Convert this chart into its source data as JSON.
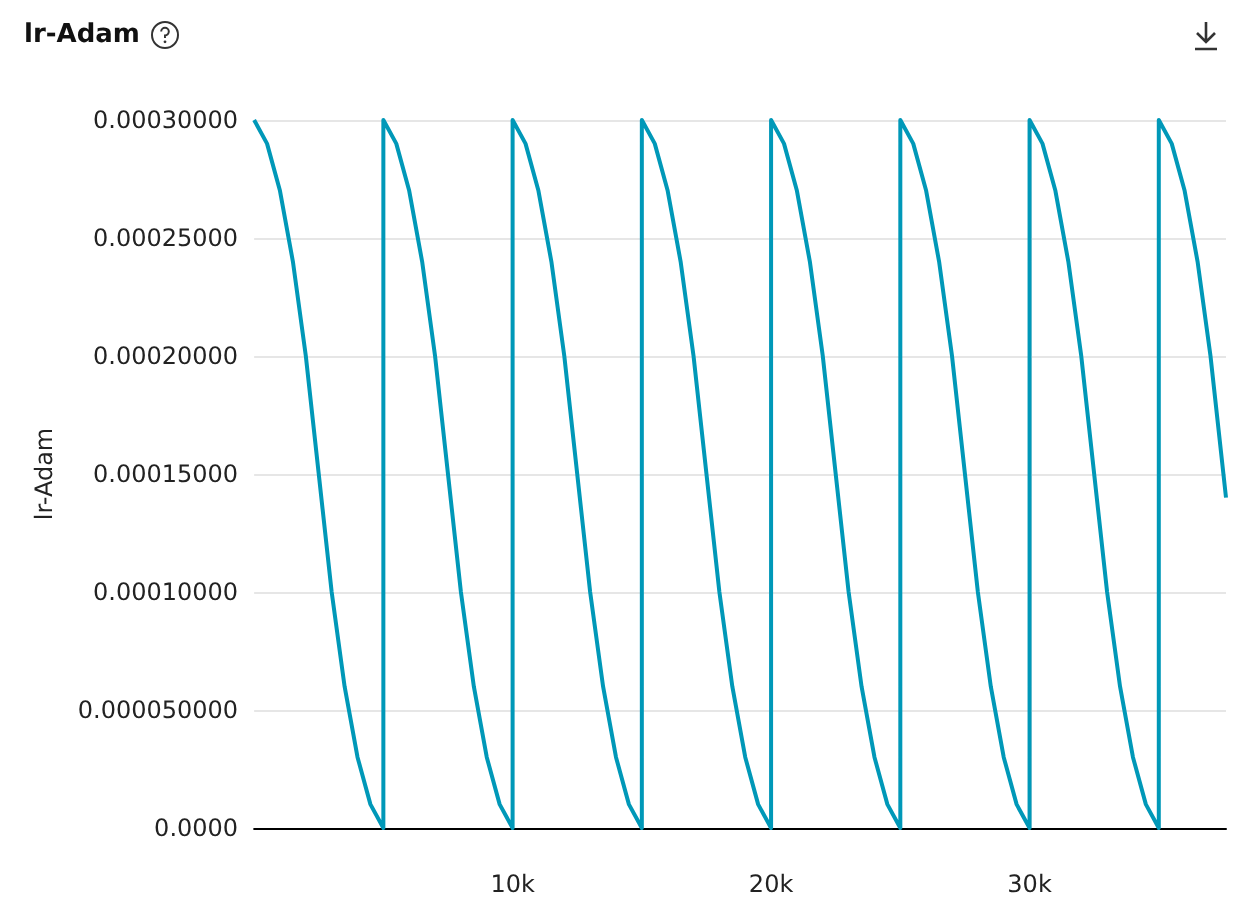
{
  "chart_data": {
    "type": "line",
    "title": "lr-Adam",
    "ylabel": "lr-Adam",
    "x": [
      0,
      500,
      1000,
      1500,
      2000,
      2500,
      3000,
      3500,
      4000,
      4500,
      5000,
      5000,
      5500,
      6000,
      6500,
      7000,
      7500,
      8000,
      8500,
      9000,
      9500,
      10000,
      10000,
      10500,
      11000,
      11500,
      12000,
      12500,
      13000,
      13500,
      14000,
      14500,
      15000,
      15000,
      15500,
      16000,
      16500,
      17000,
      17500,
      18000,
      18500,
      19000,
      19500,
      20000,
      20000,
      20500,
      21000,
      21500,
      22000,
      22500,
      23000,
      23500,
      24000,
      24500,
      25000,
      25000,
      25500,
      26000,
      26500,
      27000,
      27500,
      28000,
      28500,
      29000,
      29500,
      30000,
      30000,
      30500,
      31000,
      31500,
      32000,
      32500,
      33000,
      33500,
      34000,
      34500,
      35000,
      35000,
      35500,
      36000,
      36500,
      37000,
      37500,
      37600
    ],
    "series": [
      {
        "color": "#0098b8",
        "values": [
          0.0003,
          0.00029,
          0.00027,
          0.00024,
          0.0002,
          0.00015,
          0.0001,
          6e-05,
          3e-05,
          1e-05,
          0,
          0.0003,
          0.00029,
          0.00027,
          0.00024,
          0.0002,
          0.00015,
          0.0001,
          6e-05,
          3e-05,
          1e-05,
          0,
          0.0003,
          0.00029,
          0.00027,
          0.00024,
          0.0002,
          0.00015,
          0.0001,
          6e-05,
          3e-05,
          1e-05,
          0,
          0.0003,
          0.00029,
          0.00027,
          0.00024,
          0.0002,
          0.00015,
          0.0001,
          6e-05,
          3e-05,
          1e-05,
          0,
          0.0003,
          0.00029,
          0.00027,
          0.00024,
          0.0002,
          0.00015,
          0.0001,
          6e-05,
          3e-05,
          1e-05,
          0,
          0.0003,
          0.00029,
          0.00027,
          0.00024,
          0.0002,
          0.00015,
          0.0001,
          6e-05,
          3e-05,
          1e-05,
          0,
          0.0003,
          0.00029,
          0.00027,
          0.00024,
          0.0002,
          0.00015,
          0.0001,
          6e-05,
          3e-05,
          1e-05,
          0,
          0.0003,
          0.00029,
          0.00027,
          0.00024,
          0.0002,
          0.00015,
          0.00014
        ]
      }
    ],
    "xlim": [
      0,
      37600
    ],
    "xticks": [
      {
        "value": 10000,
        "label": "10k"
      },
      {
        "value": 20000,
        "label": "20k"
      },
      {
        "value": 30000,
        "label": "30k"
      }
    ],
    "ylim": [
      0,
      0.0003
    ],
    "yticks": [
      {
        "value": 0,
        "label": "0.0000"
      },
      {
        "value": 5e-05,
        "label": "0.000050000"
      },
      {
        "value": 0.0001,
        "label": "0.00010000"
      },
      {
        "value": 0.00015,
        "label": "0.00015000"
      },
      {
        "value": 0.0002,
        "label": "0.00020000"
      },
      {
        "value": 0.00025,
        "label": "0.00025000"
      },
      {
        "value": 0.0003,
        "label": "0.00030000"
      }
    ],
    "grid": true,
    "marker": "none",
    "line_style": "solid"
  }
}
